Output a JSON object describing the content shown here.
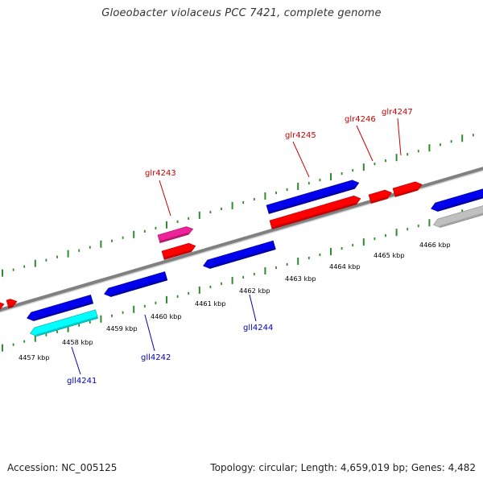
{
  "header": {
    "title": "Gloeobacter violaceus PCC 7421, complete genome"
  },
  "footer": {
    "accession": "Accession: NC_005125",
    "topology": "Topology: circular; Length: 4,659,019 bp; Genes: 4,482"
  },
  "colors": {
    "axis": "#808080",
    "forward_dots": "#2e8b2e",
    "reverse_dots": "#2e8b2e",
    "forward_label": "#cc0000",
    "reverse_label": "#0000bb",
    "tick_label": "#000000",
    "red": "#ff0000",
    "blue": "#0000ee",
    "cyan": "#00ffff",
    "magenta": "#ee2299",
    "gray": "#c0c0c0"
  },
  "ticks": [
    {
      "label": "4457 kbp"
    },
    {
      "label": "4458 kbp"
    },
    {
      "label": "4459 kbp"
    },
    {
      "label": "4460 kbp"
    },
    {
      "label": "4461 kbp"
    },
    {
      "label": "4462 kbp"
    },
    {
      "label": "4463 kbp"
    },
    {
      "label": "4464 kbp"
    },
    {
      "label": "4465 kbp"
    },
    {
      "label": "4466 kbp"
    }
  ],
  "genes": [
    {
      "color": "red",
      "label": ""
    },
    {
      "color": "red",
      "label": ""
    },
    {
      "color": "magenta",
      "label": "glr4243"
    },
    {
      "color": "red",
      "label": ""
    },
    {
      "color": "blue",
      "label": "glr4245"
    },
    {
      "color": "red",
      "label": ""
    },
    {
      "color": "red",
      "label": "glr4246"
    },
    {
      "color": "red",
      "label": "glr4247"
    },
    {
      "color": "blue",
      "label": ""
    },
    {
      "color": "gray",
      "label": ""
    },
    {
      "color": "blue",
      "label": ""
    },
    {
      "color": "cyan",
      "label": "gll4241"
    },
    {
      "color": "blue",
      "label": "gll4242"
    },
    {
      "color": "blue",
      "label": "gll4244"
    }
  ]
}
